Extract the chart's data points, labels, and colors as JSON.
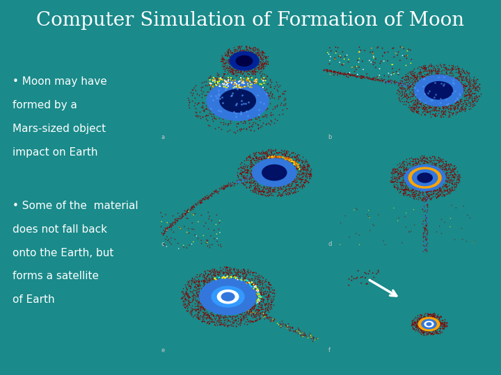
{
  "title": "Computer Simulation of Formation of Moon",
  "title_fontsize": 20,
  "title_color": "white",
  "background_color": "#1a8a8a",
  "text_block1_lines": [
    "• Moon may have",
    "formed by a",
    "Mars-sized object",
    "impact on Earth"
  ],
  "text_block2_lines": [
    "• Some of the  material",
    "does not fall back",
    "onto the Earth, but",
    "forms a satellite",
    "of Earth"
  ],
  "text_color": "white",
  "text_fontsize": 11,
  "grid_labels": [
    "a",
    "b",
    "c",
    "d",
    "e",
    "f"
  ],
  "teal_color": "#1a8a8a"
}
